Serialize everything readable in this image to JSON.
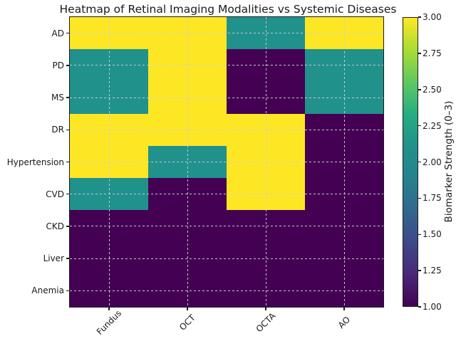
{
  "chart_data": {
    "type": "heatmap",
    "title": "Heatmap of Retinal Imaging Modalities vs Systemic Diseases",
    "x_categories": [
      "Fundus",
      "OCT",
      "OCTA",
      "AO"
    ],
    "y_categories": [
      "AD",
      "PD",
      "MS",
      "DR",
      "Hypertension",
      "CVD",
      "CKD",
      "Liver",
      "Anemia"
    ],
    "values": [
      [
        3,
        3,
        2,
        3
      ],
      [
        2,
        3,
        1,
        2
      ],
      [
        2,
        3,
        1,
        2
      ],
      [
        3,
        3,
        3,
        1
      ],
      [
        3,
        2,
        3,
        1
      ],
      [
        2,
        1,
        3,
        1
      ],
      [
        1,
        1,
        1,
        1
      ],
      [
        1,
        1,
        1,
        1
      ],
      [
        1,
        1,
        1,
        1
      ]
    ],
    "value_colors": {
      "1": "#440154",
      "2": "#21918c",
      "3": "#fde725"
    },
    "colormap": "viridis",
    "gradient_bottom_to_top": [
      "#440154",
      "#482878",
      "#3e4989",
      "#31688e",
      "#26828e",
      "#21918c",
      "#27ad81",
      "#5ec962",
      "#aadc32",
      "#fde725"
    ],
    "grid": "dashed",
    "colorbar": {
      "label": "Biomarker Strength (0–3)",
      "min": 1.0,
      "max": 3.0,
      "ticks": [
        "3.00",
        "2.75",
        "2.50",
        "2.25",
        "2.00",
        "1.75",
        "1.50",
        "1.25",
        "1.00"
      ]
    }
  }
}
